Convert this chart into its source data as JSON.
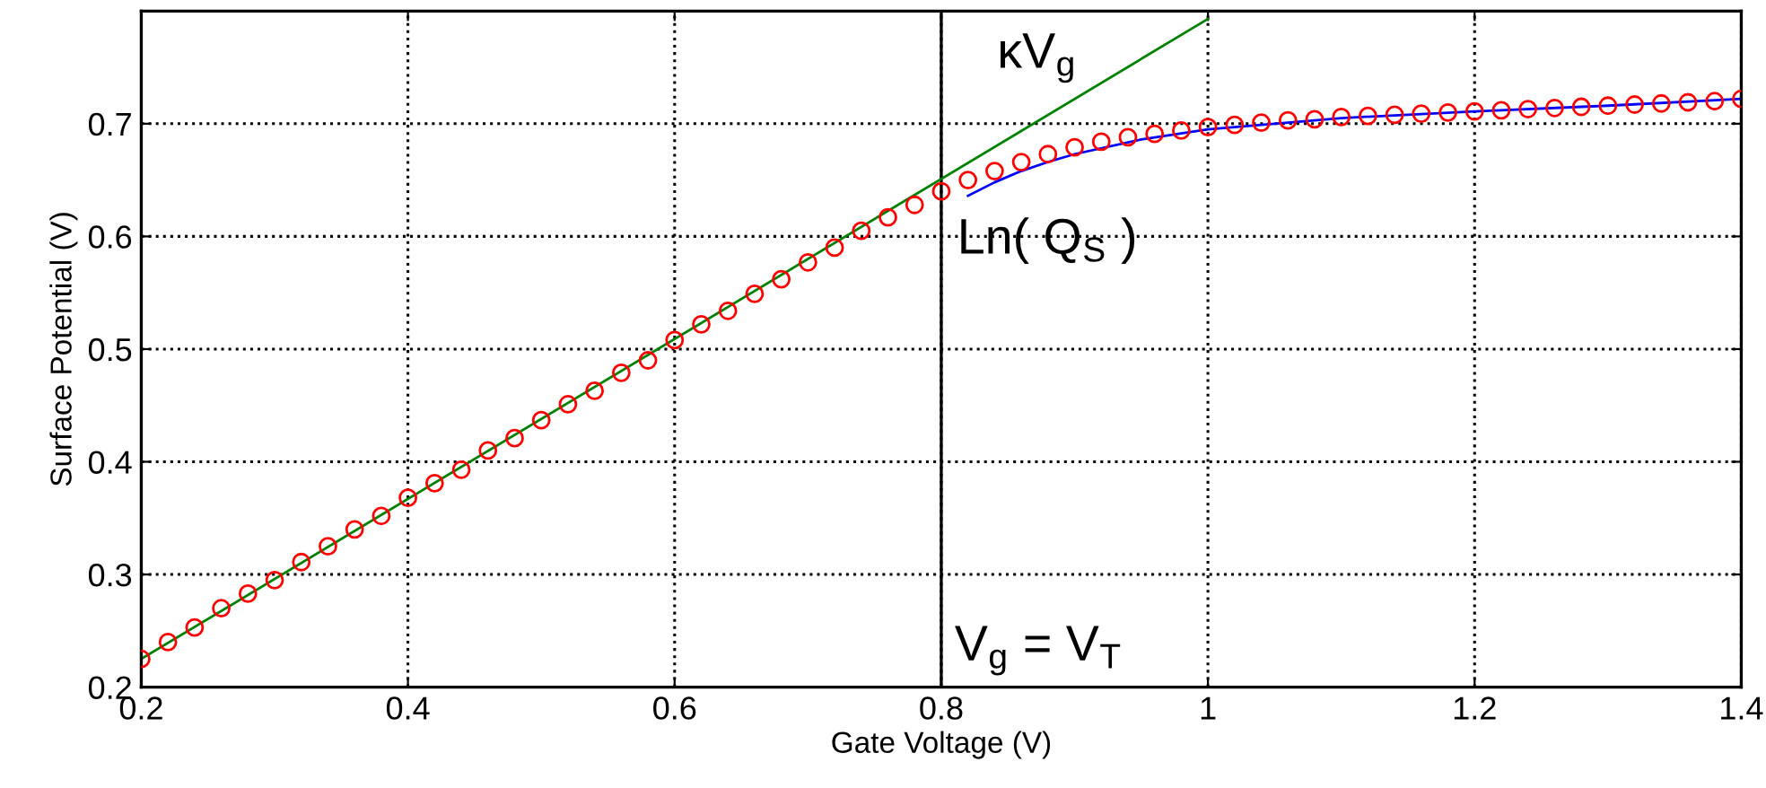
{
  "chart_data": {
    "type": "line",
    "xlabel": "Gate Voltage (V)",
    "ylabel": "Surface Potential (V)",
    "xlim": [
      0.2,
      1.4
    ],
    "ylim": [
      0.2,
      0.8
    ],
    "xticks": [
      0.2,
      0.4,
      0.6,
      0.8,
      1,
      1.2,
      1.4
    ],
    "yticks": [
      0.2,
      0.3,
      0.4,
      0.5,
      0.6,
      0.7
    ],
    "grid": true,
    "series": [
      {
        "type": "scatter",
        "color": "#ff0000",
        "marker": "circle",
        "x": [
          0.2,
          0.22,
          0.24,
          0.26,
          0.28,
          0.3,
          0.32,
          0.34,
          0.36,
          0.38,
          0.4,
          0.42,
          0.44,
          0.46,
          0.48,
          0.5,
          0.52,
          0.54,
          0.56,
          0.58,
          0.6,
          0.62,
          0.64,
          0.66,
          0.68,
          0.7,
          0.72,
          0.74,
          0.76,
          0.78,
          0.8,
          0.82,
          0.84,
          0.86,
          0.88,
          0.9,
          0.92,
          0.94,
          0.96,
          0.98,
          1.0,
          1.02,
          1.04,
          1.06,
          1.08,
          1.1,
          1.12,
          1.14,
          1.16,
          1.18,
          1.2,
          1.22,
          1.24,
          1.26,
          1.28,
          1.3,
          1.32,
          1.34,
          1.36,
          1.38,
          1.4
        ],
        "values": [
          0.225,
          0.24,
          0.253,
          0.27,
          0.283,
          0.295,
          0.311,
          0.325,
          0.34,
          0.352,
          0.368,
          0.381,
          0.393,
          0.41,
          0.421,
          0.437,
          0.451,
          0.463,
          0.479,
          0.49,
          0.508,
          0.522,
          0.534,
          0.549,
          0.562,
          0.577,
          0.59,
          0.605,
          0.617,
          0.628,
          0.64,
          0.65,
          0.658,
          0.666,
          0.673,
          0.679,
          0.684,
          0.688,
          0.691,
          0.694,
          0.697,
          0.699,
          0.701,
          0.703,
          0.704,
          0.706,
          0.707,
          0.708,
          0.709,
          0.71,
          0.711,
          0.712,
          0.713,
          0.714,
          0.715,
          0.716,
          0.717,
          0.718,
          0.719,
          0.72,
          0.722
        ]
      },
      {
        "color": "#008000",
        "line_style": "solid",
        "x": [
          0.2,
          1.0
        ],
        "values": [
          0.225,
          0.793
        ]
      },
      {
        "color": "#0000ff",
        "line_style": "solid",
        "x": [
          0.82,
          0.84,
          0.86,
          0.88,
          0.9,
          0.95,
          1.0,
          1.1,
          1.2,
          1.3,
          1.4
        ],
        "values": [
          0.636,
          0.648,
          0.658,
          0.666,
          0.673,
          0.686,
          0.695,
          0.705,
          0.711,
          0.716,
          0.722
        ]
      }
    ],
    "ref_lines": [
      {
        "axis": "x",
        "value": 0.8,
        "label": "V$_{g}$ = V$_{T}$",
        "color": "#000000",
        "line_style": "solid"
      }
    ],
    "annotations": [
      "κV$_{g}$",
      "Ln( Q$_{S}$ )"
    ]
  }
}
